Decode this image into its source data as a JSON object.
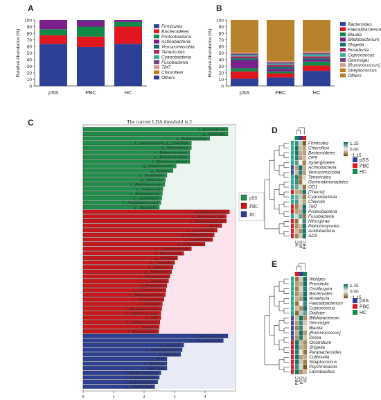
{
  "colors": {
    "phylum": [
      "#2e3f96",
      "#e2161e",
      "#0f8a48",
      "#7b1f8c",
      "#13706b",
      "#a6295f",
      "#3ab0a2",
      "#6f3f7c",
      "#d89a8e",
      "#c07d18"
    ],
    "genus": [
      "#2e3f96",
      "#e2161e",
      "#0f8a48",
      "#7b1f8c",
      "#13706b",
      "#a6295f",
      "#3ab0a2",
      "#6f3f7c",
      "#d89a8e",
      "#c07d18",
      "#b5812a"
    ],
    "lda": {
      "pSS": "#1f8e4a",
      "PBC": "#c7171b",
      "HC": "#2e3f96"
    },
    "lda_labels_bg": {
      "pSS": "#e9f5ee",
      "PBC": "#fbe3ee",
      "HC": "#e8eaf5"
    }
  },
  "chart_data": [
    {
      "panel": "A",
      "type": "bar",
      "stacked": true,
      "ylabel": "Relative Abundance (%)",
      "ylim": [
        0,
        100
      ],
      "yticks": [
        "0",
        "10",
        "20",
        "30",
        "40",
        "50",
        "60",
        "70",
        "80",
        "90",
        "100"
      ],
      "categories": [
        "pSS",
        "PBC",
        "HC"
      ],
      "series": [
        {
          "name": "Firmicutes",
          "values": [
            64,
            59,
            64
          ]
        },
        {
          "name": "Bacteroidetes",
          "values": [
            13,
            16,
            26
          ]
        },
        {
          "name": "Proteobacteria",
          "values": [
            9,
            15,
            7
          ]
        },
        {
          "name": "Actinobacteria",
          "values": [
            14,
            9,
            3
          ]
        },
        {
          "name": "Verrucomicrobia",
          "values": [
            0,
            0,
            0
          ]
        },
        {
          "name": "Tenericutes",
          "values": [
            0,
            0,
            0
          ]
        },
        {
          "name": "Cyanobacteria",
          "values": [
            0,
            0,
            0
          ]
        },
        {
          "name": "Fusobacteria",
          "values": [
            0,
            0,
            0
          ]
        },
        {
          "name": "TM7",
          "values": [
            0,
            0,
            0
          ]
        },
        {
          "name": "Chloroflexi",
          "values": [
            0,
            0,
            0
          ]
        },
        {
          "name": "Others",
          "values": [
            0,
            1,
            0
          ]
        }
      ]
    },
    {
      "panel": "B",
      "type": "bar",
      "stacked": true,
      "ylabel": "Relative Abundance (%)",
      "ylim": [
        0,
        100
      ],
      "yticks": [
        "0",
        "10",
        "20",
        "30",
        "40",
        "50",
        "60",
        "70",
        "80",
        "90",
        "100"
      ],
      "categories": [
        "pSS",
        "PBC",
        "HC"
      ],
      "series": [
        {
          "name": "Bacteroides",
          "values": [
            11,
            13,
            23
          ]
        },
        {
          "name": "Faecalibacterium",
          "values": [
            11,
            6,
            8
          ]
        },
        {
          "name": "Blautia",
          "values": [
            5,
            3,
            6
          ]
        },
        {
          "name": "Bifidobacterium",
          "values": [
            12,
            4,
            3
          ]
        },
        {
          "name": "Shigella",
          "values": [
            3,
            3,
            2
          ]
        },
        {
          "name": "Roseburia",
          "values": [
            3,
            3,
            3
          ]
        },
        {
          "name": "Coprococcus",
          "values": [
            2,
            2,
            3
          ]
        },
        {
          "name": "Gemmiger",
          "values": [
            2,
            2,
            2
          ]
        },
        {
          "name": "[Ruminococcus]",
          "values": [
            2,
            2,
            2
          ]
        },
        {
          "name": "Streptococcus",
          "values": [
            3,
            2,
            1
          ]
        },
        {
          "name": "Others",
          "values": [
            46,
            60,
            47
          ]
        }
      ]
    },
    {
      "panel": "C",
      "type": "bar",
      "orientation": "horizontal",
      "title": "The current LDA threshold is 2",
      "xlim": [
        0,
        5
      ],
      "xticks": [
        "0",
        "1",
        "2",
        "3",
        "4"
      ],
      "legend": [
        "pSS",
        "PBC",
        "HC"
      ],
      "groups": [
        {
          "name": "pSS",
          "items": [
            [
              "f__Bacteroidaceae",
              4.75
            ],
            [
              "g__Bacteroides",
              4.75
            ],
            [
              "g__Hyphomicrobium",
              4.15
            ],
            [
              "f__Lachnospiraceae_g__Clostridium",
              3.55
            ],
            [
              "f__Veillonellaceae",
              3.55
            ],
            [
              "c__Dehalococcoidetes",
              3.5
            ],
            [
              "o__Dehalococcoidales",
              3.5
            ],
            [
              "f__Dehalococcoidaceae",
              3.5
            ],
            [
              "g__Exiguobacterium",
              3.05
            ],
            [
              "g__Ralstonia",
              2.95
            ],
            [
              "g__Desulfovibrio",
              2.75
            ],
            [
              "g__Pelomonas",
              2.7
            ],
            [
              "f__Rhodobacteraceae",
              2.68
            ],
            [
              "g__Pediococcus",
              2.62
            ],
            [
              "o__Rhodobacterales",
              2.6
            ],
            [
              "g__Acinetobacter",
              2.58
            ],
            [
              "f__[Exiguobacteraceae]",
              2.55
            ],
            [
              "g__Mitsuokella",
              2.5
            ]
          ]
        },
        {
          "name": "PBC",
          "items": [
            [
              "c__Gammaproteobacteria",
              4.8
            ],
            [
              "o__Enterobacteriales",
              4.7
            ],
            [
              "f__Enterobacteriaceae",
              4.7
            ],
            [
              "c__Bacilli",
              4.55
            ],
            [
              "o__Lactobacillales",
              4.4
            ],
            [
              "f__Lactobacillaceae",
              4.3
            ],
            [
              "g__Lactobacillus",
              4.25
            ],
            [
              "g__Streptococcus",
              4.0
            ],
            [
              "o__Campylobacterales",
              3.55
            ],
            [
              "f__Nitrospiraceae",
              3.3
            ],
            [
              "g__Nitrospira",
              3.1
            ],
            [
              "g__Finegoldia",
              3.0
            ],
            [
              "p__Nitrospirae",
              2.95
            ],
            [
              "g__Arthrobacter",
              2.9
            ],
            [
              "g__Dysgonomonas",
              2.85
            ],
            [
              "c__Nitrospira",
              2.8
            ],
            [
              "o__Nitrospirales",
              2.75
            ],
            [
              "g__Corynebacterium",
              2.72
            ],
            [
              "c__Betaproteobacteria",
              2.7
            ],
            [
              "o__Actinomycetales",
              2.65
            ],
            [
              "o__Bacillales",
              2.6
            ],
            [
              "f__Corynebacteriaceae",
              2.58
            ],
            [
              "f__Staphylococcaceae",
              2.55
            ],
            [
              "p__TM7",
              2.55
            ],
            [
              "f__Oxalobacteraceae",
              2.52
            ],
            [
              "c__Nitrospira",
              2.5
            ],
            [
              "f__Micrococcaceae",
              2.48
            ]
          ]
        },
        {
          "name": "HC",
          "items": [
            [
              "f__Ruminococcaceae",
              4.75
            ],
            [
              "g__Faecalibacterium",
              4.6
            ],
            [
              "g__Lysobacter",
              3.3
            ],
            [
              "p__Gemmatimonadetes",
              3.25
            ],
            [
              "p__ACK_M1",
              3.2
            ],
            [
              "o__RF39",
              2.75
            ],
            [
              "c__Mollicutes",
              2.75
            ],
            [
              "p__Tenericutes",
              2.75
            ],
            [
              "f__Xanthomonadaceae",
              2.55
            ],
            [
              "f__Comamonadaceae",
              2.5
            ],
            [
              "o__Xanthomonadales",
              2.45
            ],
            [
              "g__Ochrobactrum",
              2.35
            ]
          ]
        }
      ]
    },
    {
      "panel": "D",
      "type": "heatmap",
      "colorscale": {
        "max": "1.15",
        "mid": "0.00",
        "min": "−1.15"
      },
      "legend": [
        "pSS",
        "PBC",
        "HC"
      ],
      "columns": [
        "HC",
        "pSS",
        "PBC"
      ],
      "rows": [
        "Firmicutes",
        "Chloroflexi",
        "Bacteroidetes",
        "OP9",
        "Synergistetes",
        "Actinobacteria",
        "Verrucomicrobia",
        "Tenericutes",
        "Gemmatimonadetes",
        "OD1",
        "[Thermi]",
        "Cyanobacteria",
        "Chlorobi",
        "TM7",
        "Proteobacteria",
        "Fusobacteria",
        "Nitrospirae",
        "Planctomycetes",
        "Acidobacteria",
        "AD3"
      ],
      "row_group": [
        "HC",
        "HC",
        "HC",
        "HC",
        "HC",
        "pSS",
        "pSS",
        "HC",
        "HC",
        "HC",
        "PBC",
        "HC",
        "HC",
        "PBC",
        "PBC",
        "HC",
        "PBC",
        "PBC",
        "PBC",
        "PBC"
      ],
      "values": [
        [
          0.9,
          0.3,
          -1.1
        ],
        [
          1.1,
          -0.4,
          -0.6
        ],
        [
          1.1,
          -0.5,
          -0.6
        ],
        [
          1.0,
          -0.6,
          -0.4
        ],
        [
          0.8,
          0.0,
          -0.8
        ],
        [
          -0.6,
          1.1,
          -0.5
        ],
        [
          -0.4,
          1.0,
          -0.6
        ],
        [
          1.0,
          -0.8,
          -0.2
        ],
        [
          0.9,
          -0.9,
          0.0
        ],
        [
          0.7,
          0.2,
          -0.9
        ],
        [
          -0.5,
          -0.6,
          1.1
        ],
        [
          0.6,
          0.3,
          -0.9
        ],
        [
          0.8,
          -0.2,
          -0.6
        ],
        [
          -0.8,
          -0.3,
          1.1
        ],
        [
          -0.6,
          -0.5,
          1.1
        ],
        [
          0.2,
          0.7,
          -0.9
        ],
        [
          -0.9,
          0.0,
          0.9
        ],
        [
          -0.7,
          -0.4,
          1.1
        ],
        [
          -0.4,
          -0.7,
          1.1
        ],
        [
          -0.8,
          -0.3,
          1.1
        ]
      ]
    },
    {
      "panel": "E",
      "type": "heatmap",
      "colorscale": {
        "max": "1.15",
        "mid": "0.00",
        "min": "−1.15"
      },
      "legend": [
        "pSS",
        "PBC",
        "HC"
      ],
      "columns": [
        "PBC",
        "pSS",
        "HC"
      ],
      "rows": [
        "Alistipes",
        "Prevotella",
        "Oscillospira",
        "Bacteroides",
        "Roseburia",
        "Faecalibacterium",
        "Coprococcus",
        "Dialister",
        "Bifidobacterium",
        "Gemmiger",
        "Blautia",
        "[Ruminococcus]",
        "Dorea",
        "Clostridium",
        "Shigella",
        "Parabacteroides",
        "Collinsella",
        "Streptococcus",
        "Psychrobacter",
        "Lactobacillus"
      ],
      "row_group": [
        "HC",
        "HC",
        "HC",
        "HC",
        "HC",
        "HC",
        "HC",
        "HC",
        "pSS",
        "pSS",
        "pSS",
        "pSS",
        "pSS",
        "PBC",
        "PBC",
        "PBC",
        "PBC",
        "PBC",
        "PBC",
        "PBC"
      ],
      "values": [
        [
          -0.9,
          -0.3,
          1.1
        ],
        [
          -0.6,
          -0.5,
          1.1
        ],
        [
          -0.8,
          -0.2,
          1.0
        ],
        [
          -0.7,
          -0.4,
          1.1
        ],
        [
          -0.5,
          -0.6,
          1.1
        ],
        [
          -0.9,
          0.0,
          0.9
        ],
        [
          -0.4,
          -0.7,
          1.1
        ],
        [
          -1.0,
          0.3,
          0.7
        ],
        [
          -0.4,
          1.1,
          -0.7
        ],
        [
          -0.6,
          0.9,
          -0.3
        ],
        [
          -0.8,
          0.9,
          -0.1
        ],
        [
          -0.5,
          1.1,
          -0.6
        ],
        [
          -0.7,
          1.0,
          -0.3
        ],
        [
          1.1,
          -0.4,
          -0.7
        ],
        [
          1.1,
          -0.5,
          -0.6
        ],
        [
          1.0,
          -0.1,
          -0.9
        ],
        [
          1.1,
          -0.6,
          -0.5
        ],
        [
          1.1,
          -0.3,
          -0.8
        ],
        [
          0.9,
          0.2,
          -1.1
        ],
        [
          1.1,
          -0.7,
          -0.4
        ]
      ]
    }
  ]
}
